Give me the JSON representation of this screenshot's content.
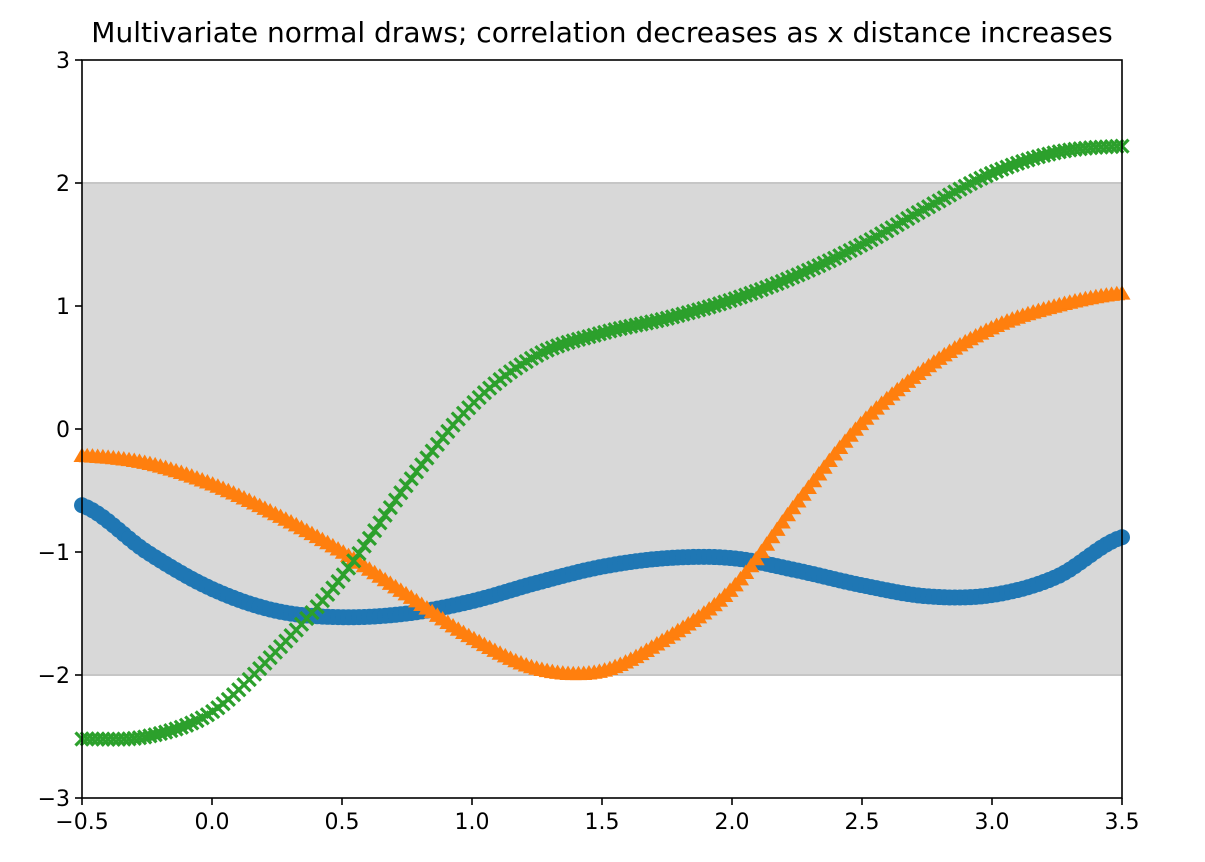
{
  "chart_data": {
    "type": "scatter",
    "title": "Multivariate normal draws; correlation decreases as x distance increases",
    "xlabel": "",
    "ylabel": "",
    "xlim": [
      -0.5,
      3.5
    ],
    "ylim": [
      -3,
      3
    ],
    "x_ticks": [
      -0.5,
      0.0,
      0.5,
      1.0,
      1.5,
      2.0,
      2.5,
      3.0,
      3.5
    ],
    "x_tick_labels": [
      "−0.5",
      "0.0",
      "0.5",
      "1.0",
      "1.5",
      "2.0",
      "2.5",
      "3.0",
      "3.5"
    ],
    "y_ticks": [
      -3,
      -2,
      -1,
      0,
      1,
      2,
      3
    ],
    "y_tick_labels": [
      "−3",
      "−2",
      "−1",
      "0",
      "1",
      "2",
      "3"
    ],
    "band": {
      "y_min": -2,
      "y_max": 2,
      "color": "#d8d8d8",
      "edge_color": "#c6c6c6"
    },
    "grid": false,
    "legend": "none",
    "series": [
      {
        "marker": "circle",
        "color": "#1f77b4",
        "x": [
          -0.5,
          -0.25,
          0.0,
          0.25,
          0.5,
          0.75,
          1.0,
          1.25,
          1.5,
          1.75,
          2.0,
          2.25,
          2.5,
          2.75,
          3.0,
          3.25,
          3.5
        ],
        "y": [
          -0.62,
          -1.0,
          -1.3,
          -1.48,
          -1.53,
          -1.5,
          -1.4,
          -1.25,
          -1.12,
          -1.05,
          -1.05,
          -1.15,
          -1.27,
          -1.36,
          -1.35,
          -1.2,
          -0.88
        ]
      },
      {
        "marker": "triangle",
        "color": "#ff7f0e",
        "x": [
          -0.5,
          -0.25,
          0.0,
          0.25,
          0.5,
          0.75,
          1.0,
          1.25,
          1.5,
          1.75,
          2.0,
          2.25,
          2.5,
          2.75,
          3.0,
          3.25,
          3.5
        ],
        "y": [
          -0.22,
          -0.28,
          -0.45,
          -0.7,
          -1.0,
          -1.35,
          -1.7,
          -1.95,
          -1.97,
          -1.7,
          -1.3,
          -0.6,
          0.05,
          0.5,
          0.82,
          1.0,
          1.1
        ]
      },
      {
        "marker": "x",
        "color": "#2ca02c",
        "x": [
          -0.5,
          -0.25,
          0.0,
          0.25,
          0.5,
          0.75,
          1.0,
          1.25,
          1.5,
          1.75,
          2.0,
          2.25,
          2.5,
          2.75,
          3.0,
          3.25,
          3.5
        ],
        "y": [
          -2.52,
          -2.5,
          -2.3,
          -1.8,
          -1.2,
          -0.45,
          0.2,
          0.6,
          0.78,
          0.9,
          1.05,
          1.25,
          1.5,
          1.8,
          2.08,
          2.25,
          2.3
        ]
      }
    ]
  }
}
